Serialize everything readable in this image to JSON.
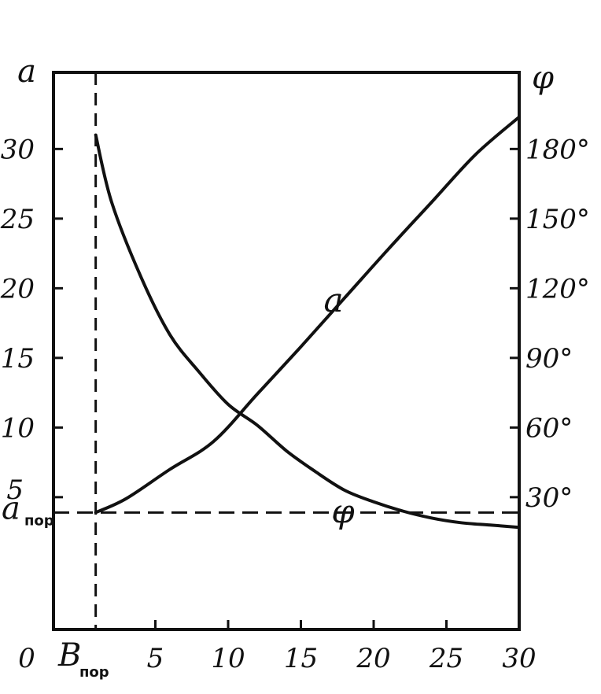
{
  "chart_data": {
    "type": "line",
    "left_axis": {
      "label": "a",
      "ticks": [
        5,
        10,
        15,
        20,
        25,
        30
      ],
      "range": [
        -4.5,
        35.5
      ],
      "special_label": {
        "main": "a",
        "sub": "пор"
      }
    },
    "right_axis": {
      "label": "φ",
      "unit": "°",
      "ticks": [
        30,
        60,
        90,
        120,
        150,
        180
      ],
      "tick_labels": [
        "30°",
        "60°",
        "90°",
        "120°",
        "150°",
        "180°"
      ]
    },
    "x_axis": {
      "ticks": [
        5,
        10,
        15,
        20,
        25,
        30
      ],
      "range": [
        -2,
        30
      ],
      "origin_label": "0",
      "special_label": {
        "main": "B",
        "sub": "пор",
        "value": 0.9
      }
    },
    "series": [
      {
        "name": "a",
        "axis": "left",
        "points": [
          [
            0.9,
            3.9
          ],
          [
            3,
            4.9
          ],
          [
            6,
            7.0
          ],
          [
            9,
            9.0
          ],
          [
            12,
            12.4
          ],
          [
            15,
            15.8
          ],
          [
            18,
            19.3
          ],
          [
            21,
            22.8
          ],
          [
            24,
            26.2
          ],
          [
            27,
            29.6
          ],
          [
            30,
            32.3
          ]
        ]
      },
      {
        "name": "φ",
        "axis": "right",
        "points": [
          [
            0.9,
            186
          ],
          [
            2,
            157
          ],
          [
            4,
            125
          ],
          [
            6,
            100
          ],
          [
            8,
            84
          ],
          [
            10,
            70
          ],
          [
            12,
            61
          ],
          [
            14,
            50
          ],
          [
            16,
            41
          ],
          [
            18,
            33
          ],
          [
            20,
            28
          ],
          [
            22,
            24
          ],
          [
            24,
            21
          ],
          [
            26,
            19
          ],
          [
            28,
            18
          ],
          [
            30,
            17
          ]
        ]
      }
    ],
    "threshold_a": 3.9,
    "grid": false,
    "legend": "none"
  }
}
